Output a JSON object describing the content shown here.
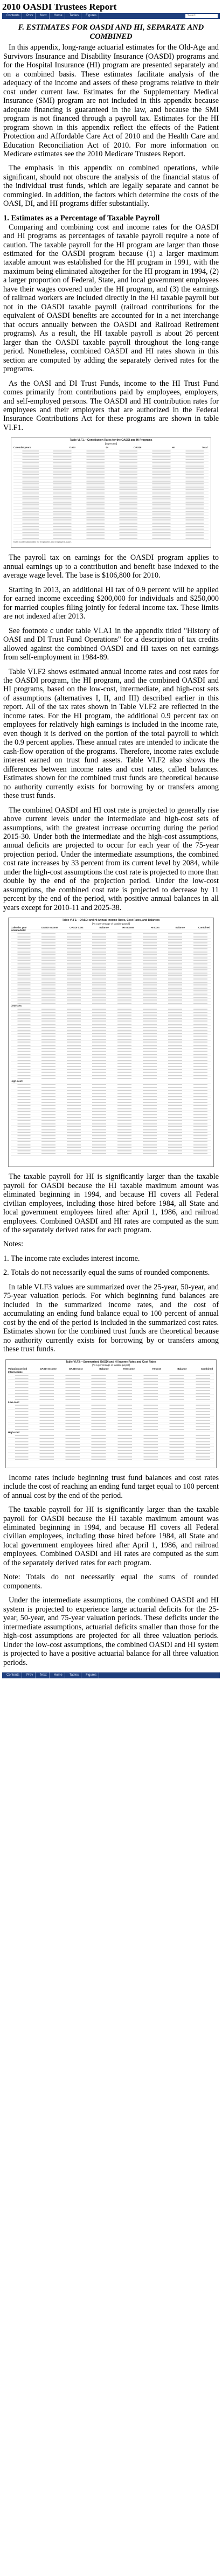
{
  "site": {
    "title": "2010 OASDI Trustees Report"
  },
  "nav": {
    "items": [
      "Contents",
      "Prev",
      "Next",
      "Home",
      "Tables",
      "Figures"
    ],
    "search_placeholder": "Search"
  },
  "section": {
    "title": "F. ESTIMATES FOR OASDI AND HI, SEPARATE AND COMBINED",
    "intro_1": "In this appendix, long-range actuarial estimates for the Old-Age and Survivors Insurance and Disability Insurance (OASDI) programs and for the Hospital Insurance (HI) program are presented separately and on a combined basis. These estimates facilitate analysis of the adequacy of the income and assets of these programs relative to their cost under current law. Estimates for the Supplementary Medical Insurance (SMI) program are not included in this appendix because adequate financing is guaranteed in the law, and because the SMI program is not financed through a payroll tax. Estimates for the HI program shown in this appendix reflect the effects of the Patient Protection and Affordable Care Act of 2010 and the Health Care and Education Reconciliation Act of 2010. For more information on Medicare estimates see the 2010 Medicare Trustees Report.",
    "intro_2": "The emphasis in this appendix on combined operations, while significant, should not obscure the analysis of the financial status of the individual trust funds, which are legally separate and cannot be commingled. In addition, the factors which determine the costs of the OASI, DI, and HI programs differ substantially.",
    "heading_1": "1. Estimates as a Percentage of Taxable Payroll",
    "para_1": "Comparing and combining cost and income rates for the OASDI and HI programs as percentages of taxable payroll require a note of caution. The taxable payroll for the HI program are larger than those estimated for the OASDI program because (1) a larger maximum taxable amount was established for the HI program in 1991, with the maximum being eliminated altogether for the HI program in 1994, (2) a larger proportion of Federal, State, and local government employees have their wages covered under the HI program, and (3) the earnings of railroad workers are included directly in the HI taxable payroll but not in the OASDI taxable payroll (railroad contributions for the equivalent of OASDI benefits are accounted for in a net interchange that occurs annually between the OASDI and Railroad Retirement programs). As a result, the HI taxable payroll is about 26 percent larger than the OASDI taxable payroll throughout the long-range period. Nonetheless, combined OASDI and HI rates shown in this section are computed by adding the separately derived rates for the programs.",
    "para_2": "As the OASI and DI Trust Funds, income to the HI Trust Fund comes primarily from contributions paid by employees, employers, and self-employed persons. The OASDI and HI contribution rates for employees and their employers that are authorized in the Federal Insurance Contributions Act for these programs are shown in table VI.F1.",
    "para_3": "The payroll tax on earnings for the OASDI program applies to annual earnings up to a contribution and benefit base indexed to the average wage level. The base is $106,800 for 2010.",
    "para_4": "Starting in 2013, an additional HI tax of 0.9 percent will be applied for earned income exceeding $200,000 for individuals and $250,000 for married couples filing jointly for federal income tax. These limits are not indexed after 2013.",
    "para_5": "See footnote c under table VI.A1 in the appendix titled \"History of OASI and DI Trust Fund Operations\" for a description of tax credits allowed against the combined OASDI and HI taxes on net earnings from self-employment in 1984-89.",
    "para_6": "Table VI.F2 shows estimated annual income rates and cost rates for the OASDI program, the HI program, and the combined OASDI and HI programs, based on the low-cost, intermediate, and high-cost sets of assumptions (alternatives I, II, and III) described earlier in this report. All of the tax rates shown in Table VI.F2 are reflected in the income rates. For the HI program, the additional 0.9 percent tax on employees for relatively high earnings is included in the income rate, even though it is derived on the portion of the total payroll to which the 0.9 percent applies. These annual rates are intended to indicate the cash-flow operation of the programs. Therefore, income rates exclude interest earned on trust fund assets. Table VI.F2 also shows the differences between income rates and cost rates, called balances. Estimates shown for the combined trust funds are theoretical because no authority currently exists for borrowing by or transfers among these trust funds.",
    "para_7": "The combined OASDI and HI cost rate is projected to generally rise above current levels under the intermediate and high-cost sets of assumptions, with the greatest increase occurring during the period 2015-30. Under both the intermediate and the high-cost assumptions, annual deficits are projected to occur for each year of the 75-year projection period. Under the intermediate assumptions, the combined cost rate increases by 33 percent from its current level by 2084, while under the high-cost assumptions the cost rate is projected to more than double by the end of the projection period. Under the low-cost assumptions, the combined cost rate is projected to decrease by 11 percent by the end of the period, with positive annual balances in all years except for 2010-11 and 2025-38.",
    "para_8": "The taxable payroll for HI is significantly larger than the taxable payroll for OASDI because the HI taxable maximum amount was eliminated beginning in 1994, and because HI covers all Federal civilian employees, including those hired before 1984, all State and local government employees hired after April 1, 1986, and railroad employees. Combined OASDI and HI rates are computed as the sum of the separately derived rates for each program.",
    "notes_label": "Notes:",
    "note_1": "1. The income rate excludes interest income.",
    "note_2": "2. Totals do not necessarily equal the sums of rounded components.",
    "para_9": "In table VI.F3 values are summarized over the 25-year, 50-year, and 75-year valuation periods. For which beginning fund balances are included in the summarized income rates, and the cost of accumulating an ending fund balance equal to 100 percent of annual cost by the end of the period is included in the summarized cost rates. Estimates shown for the combined trust funds are theoretical because no authority currently exists for borrowing by or transfers among these trust funds.",
    "para_10": "Income rates include beginning trust fund balances and cost rates include the cost of reaching an ending fund target equal to 100 percent of annual cost by the end of the period.",
    "para_11": "The taxable payroll for HI is significantly larger than the taxable payroll for OASDI because the HI taxable maximum amount was eliminated beginning in 1994, and because HI covers all Federal civilian employees, including those hired before 1984, all State and local government employees hired after April 1, 1986, and railroad employees. Combined OASDI and HI rates are computed as the sum of the separately derived rates for each program.",
    "para_12": "Note: Totals do not necessarily equal the sums of rounded components.",
    "para_13": "Under the intermediate assumptions, the combined OASDI and HI system is projected to experience large actuarial deficits for the 25-year, 50-year, and 75-year valuation periods. These deficits under the intermediate assumptions, actuarial deficits smaller than those for the high-cost assumptions are projected for all three valuation periods. Under the low-cost assumptions, the combined OASDI and HI system is projected to have a positive actuarial balance for all three valuation periods."
  },
  "links": {
    "medicare_report": "2010 Medicare Trustees Report",
    "cost_rates": "cost",
    "taxable_payroll": "taxable payroll",
    "net_interchange": "net interchange",
    "railroad": "Railroad Retirement programs",
    "contributions": "contributions",
    "fica": "Federal Insurance Contributions Act",
    "table_f1": "VI.F1",
    "table_a1": "VI.A1",
    "self_employment": "net earnings from self-employment",
    "table_f2": "VI.F2",
    "table_f3": "VI.F3",
    "valuation": "valuation periods",
    "income_rates": "summarized income rates",
    "summ_cost": "summarized cost rates",
    "actuarial_deficits": "actuarial deficits"
  },
  "figures": {
    "f1": {
      "title": "Table VI.F1.—Contribution Rates for the OASDI and HI Programs",
      "subtitle": "[In percent]",
      "header": [
        "Calendar years",
        "OASI",
        "DI",
        "OASDI",
        "HI",
        "Total"
      ],
      "footnote": "Note: Contribution rates for employees and employers, each."
    },
    "f2": {
      "title": "Table VI.F2.—OASDI and HI Annual Income Rates, Cost Rates, and Balances",
      "subtitle": "[As a percentage of taxable payroll]",
      "header": [
        "Calendar year",
        "OASDI Income",
        "OASDI Cost",
        "Balance",
        "HI Income",
        "HI Cost",
        "Balance",
        "Combined"
      ],
      "groups": [
        "Intermediate:",
        "Low-cost:",
        "High-cost:"
      ]
    },
    "f3": {
      "title": "Table VI.F3.—Summarized OASDI and HI Income Rates and Cost Rates",
      "subtitle": "[As a percentage of taxable payroll]",
      "header": [
        "Valuation period",
        "OASDI Income",
        "OASDI Cost",
        "Balance",
        "HI Income",
        "HI Cost",
        "Balance",
        "Combined"
      ],
      "groups": [
        "Intermediate:",
        "Low-cost:",
        "High-cost:"
      ]
    }
  }
}
